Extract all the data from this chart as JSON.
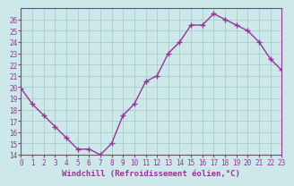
{
  "x": [
    0,
    1,
    2,
    3,
    4,
    5,
    6,
    7,
    8,
    9,
    10,
    11,
    12,
    13,
    14,
    15,
    16,
    17,
    18,
    19,
    20,
    21,
    22,
    23
  ],
  "y": [
    19.9,
    18.5,
    17.5,
    16.5,
    15.5,
    14.5,
    14.5,
    14.0,
    15.0,
    17.5,
    18.5,
    20.5,
    21.0,
    23.0,
    24.0,
    25.5,
    25.5,
    26.5,
    26.0,
    25.5,
    25.0,
    24.0,
    22.5,
    21.5
  ],
  "line_color": "#993399",
  "marker": "+",
  "marker_size": 4,
  "bg_color": "#cce8e8",
  "grid_color": "#aacccc",
  "xlabel": "Windchill (Refroidissement éolien,°C)",
  "tick_color": "#993399",
  "ylim": [
    14,
    27
  ],
  "yticks": [
    14,
    15,
    16,
    17,
    18,
    19,
    20,
    21,
    22,
    23,
    24,
    25,
    26
  ],
  "xticks": [
    0,
    1,
    2,
    3,
    4,
    5,
    6,
    7,
    8,
    9,
    10,
    11,
    12,
    13,
    14,
    15,
    16,
    17,
    18,
    19,
    20,
    21,
    22,
    23
  ],
  "xtick_labels": [
    "0",
    "1",
    "2",
    "3",
    "4",
    "5",
    "6",
    "7",
    "8",
    "9",
    "10",
    "11",
    "12",
    "13",
    "14",
    "15",
    "16",
    "17",
    "18",
    "19",
    "20",
    "21",
    "22",
    "23"
  ],
  "spine_color": "#993399",
  "linewidth": 1.0,
  "font_size_x": 5.5,
  "font_size_y": 5.5,
  "font_size_xlabel": 6.5
}
